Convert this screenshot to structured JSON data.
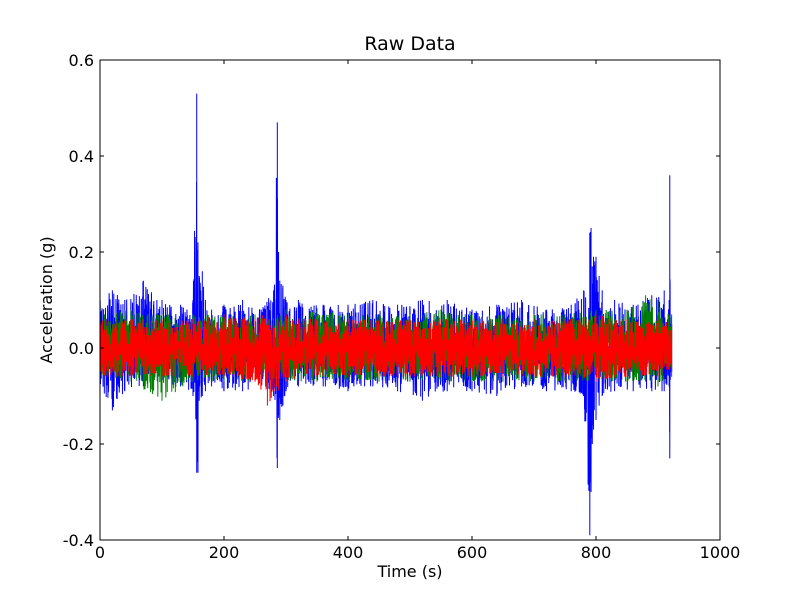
{
  "chart_data": {
    "type": "line",
    "title": "Raw Data",
    "xlabel": "Time (s)",
    "ylabel": "Acceleration (g)",
    "xlim": [
      0,
      1000
    ],
    "ylim": [
      -0.4,
      0.6
    ],
    "x_ticks": [
      0,
      200,
      400,
      600,
      800,
      1000
    ],
    "x_tick_labels": [
      "0",
      "200",
      "400",
      "600",
      "800",
      "1000"
    ],
    "y_ticks": [
      -0.4,
      -0.2,
      0.0,
      0.2,
      0.4,
      0.6
    ],
    "y_tick_labels": [
      "-0.4",
      "-0.2",
      "0.0",
      "0.2",
      "0.4",
      "0.6"
    ],
    "grid": false,
    "legend": "none",
    "series": [
      {
        "color": "#0000ff",
        "x": [
          0,
          20,
          40,
          70,
          100,
          130,
          150,
          156,
          158,
          160,
          165,
          170,
          180,
          200,
          230,
          260,
          280,
          286,
          288,
          290,
          295,
          300,
          320,
          360,
          400,
          440,
          480,
          520,
          560,
          600,
          640,
          680,
          720,
          760,
          780,
          790,
          792,
          794,
          796,
          800,
          805,
          810,
          830,
          860,
          890,
          910,
          918,
          919,
          920,
          921,
          922
        ],
        "y_max": [
          0.1,
          0.12,
          0.1,
          0.14,
          0.1,
          0.09,
          0.1,
          0.53,
          0.22,
          0.15,
          0.16,
          0.1,
          0.08,
          0.09,
          0.1,
          0.08,
          0.12,
          0.47,
          0.2,
          0.14,
          0.13,
          0.1,
          0.1,
          0.09,
          0.09,
          0.1,
          0.09,
          0.1,
          0.1,
          0.08,
          0.09,
          0.1,
          0.08,
          0.09,
          0.12,
          0.24,
          0.25,
          0.17,
          0.19,
          0.19,
          0.15,
          0.12,
          0.1,
          0.09,
          0.11,
          0.12,
          0.1,
          0.36,
          0.05,
          0.05,
          0.05
        ],
        "y_min": [
          -0.09,
          -0.13,
          -0.09,
          -0.08,
          -0.08,
          -0.08,
          -0.1,
          -0.26,
          -0.26,
          -0.11,
          -0.1,
          -0.09,
          -0.08,
          -0.09,
          -0.09,
          -0.08,
          -0.1,
          -0.25,
          -0.14,
          -0.15,
          -0.12,
          -0.09,
          -0.08,
          -0.08,
          -0.09,
          -0.08,
          -0.09,
          -0.11,
          -0.09,
          -0.09,
          -0.1,
          -0.08,
          -0.09,
          -0.09,
          -0.1,
          -0.39,
          -0.3,
          -0.2,
          -0.17,
          -0.15,
          -0.12,
          -0.1,
          -0.09,
          -0.09,
          -0.09,
          -0.09,
          -0.08,
          -0.23,
          -0.05,
          -0.05,
          -0.05
        ]
      },
      {
        "color": "#008000",
        "x": [
          0,
          50,
          100,
          150,
          200,
          250,
          300,
          350,
          400,
          450,
          500,
          550,
          600,
          650,
          700,
          750,
          800,
          850,
          880,
          900,
          922
        ],
        "y_max": [
          0.07,
          0.08,
          0.07,
          0.07,
          0.07,
          0.07,
          0.08,
          0.08,
          0.07,
          0.07,
          0.07,
          0.08,
          0.07,
          0.07,
          0.07,
          0.07,
          0.08,
          0.08,
          0.11,
          0.1,
          0.07
        ],
        "y_min": [
          -0.06,
          -0.07,
          -0.11,
          -0.07,
          -0.07,
          -0.07,
          -0.07,
          -0.07,
          -0.07,
          -0.07,
          -0.07,
          -0.07,
          -0.07,
          -0.07,
          -0.07,
          -0.07,
          -0.07,
          -0.07,
          -0.07,
          -0.08,
          -0.06
        ]
      },
      {
        "color": "#ff0000",
        "x": [
          0,
          50,
          100,
          150,
          200,
          250,
          270,
          300,
          350,
          400,
          450,
          500,
          550,
          600,
          650,
          700,
          750,
          800,
          850,
          900,
          922
        ],
        "y_max": [
          0.06,
          0.06,
          0.06,
          0.06,
          0.07,
          0.06,
          0.08,
          0.07,
          0.06,
          0.06,
          0.06,
          0.06,
          0.06,
          0.06,
          0.06,
          0.06,
          0.06,
          0.07,
          0.06,
          0.06,
          0.05
        ],
        "y_min": [
          -0.06,
          -0.06,
          -0.06,
          -0.06,
          -0.06,
          -0.07,
          -0.12,
          -0.07,
          -0.06,
          -0.06,
          -0.06,
          -0.06,
          -0.06,
          -0.06,
          -0.06,
          -0.06,
          -0.06,
          -0.07,
          -0.06,
          -0.06,
          -0.05
        ]
      }
    ]
  }
}
